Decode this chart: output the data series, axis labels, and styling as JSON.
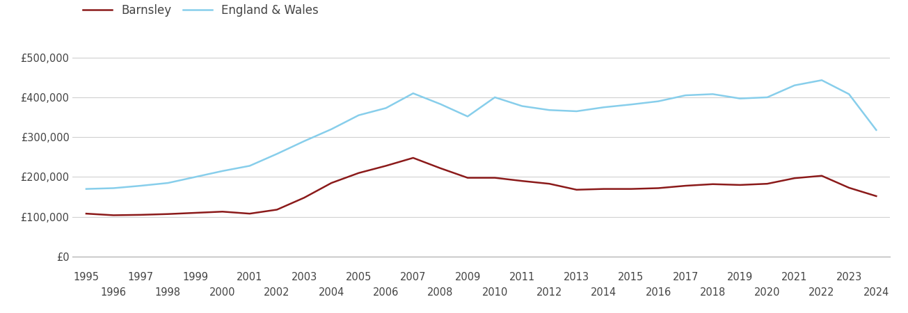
{
  "years": [
    1995,
    1996,
    1997,
    1998,
    1999,
    2000,
    2001,
    2002,
    2003,
    2004,
    2005,
    2006,
    2007,
    2008,
    2009,
    2010,
    2011,
    2012,
    2013,
    2014,
    2015,
    2016,
    2017,
    2018,
    2019,
    2020,
    2021,
    2022,
    2023,
    2024
  ],
  "barnsley": [
    108000,
    104000,
    105000,
    107000,
    110000,
    113000,
    108000,
    118000,
    148000,
    185000,
    210000,
    228000,
    248000,
    222000,
    198000,
    198000,
    190000,
    183000,
    168000,
    170000,
    170000,
    172000,
    178000,
    182000,
    180000,
    183000,
    197000,
    203000,
    173000,
    152000
  ],
  "england_wales": [
    170000,
    172000,
    178000,
    185000,
    200000,
    215000,
    228000,
    258000,
    290000,
    320000,
    355000,
    373000,
    410000,
    383000,
    352000,
    400000,
    378000,
    368000,
    365000,
    375000,
    382000,
    390000,
    405000,
    408000,
    397000,
    400000,
    430000,
    443000,
    408000,
    318000
  ],
  "barnsley_color": "#8B1A1A",
  "ew_color": "#87CEEB",
  "background_color": "#ffffff",
  "grid_color": "#d0d0d0",
  "barnsley_label": "Barnsley",
  "ew_label": "England & Wales",
  "ylim": [
    0,
    550000
  ],
  "yticks": [
    0,
    100000,
    200000,
    300000,
    400000,
    500000
  ],
  "ytick_labels": [
    "£0",
    "£100,000",
    "£200,000",
    "£300,000",
    "£400,000",
    "£500,000"
  ],
  "line_width": 1.8,
  "figsize": [
    13.05,
    4.5
  ],
  "legend_fontsize": 12,
  "tick_fontsize": 10.5
}
